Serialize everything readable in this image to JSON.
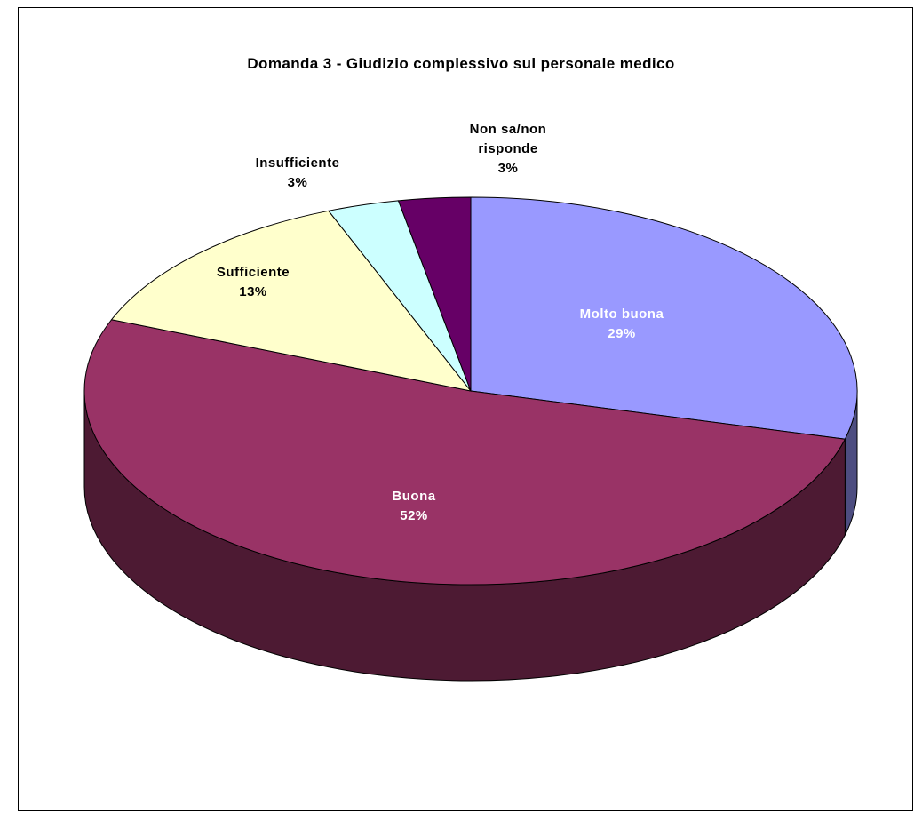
{
  "chart_data": {
    "type": "pie",
    "title": "Domanda 3 - Giudizio complessivo sul personale medico",
    "categories": [
      "Molto buona",
      "Buona",
      "Sufficiente",
      "Insufficiente",
      "Non sa/non risponde"
    ],
    "values": [
      29,
      52,
      13,
      3,
      3
    ],
    "value_labels": [
      "29%",
      "52%",
      "13%",
      "3%",
      "3%"
    ],
    "colors": [
      "#9999ff",
      "#993366",
      "#ffffcc",
      "#ccffff",
      "#660066"
    ]
  }
}
